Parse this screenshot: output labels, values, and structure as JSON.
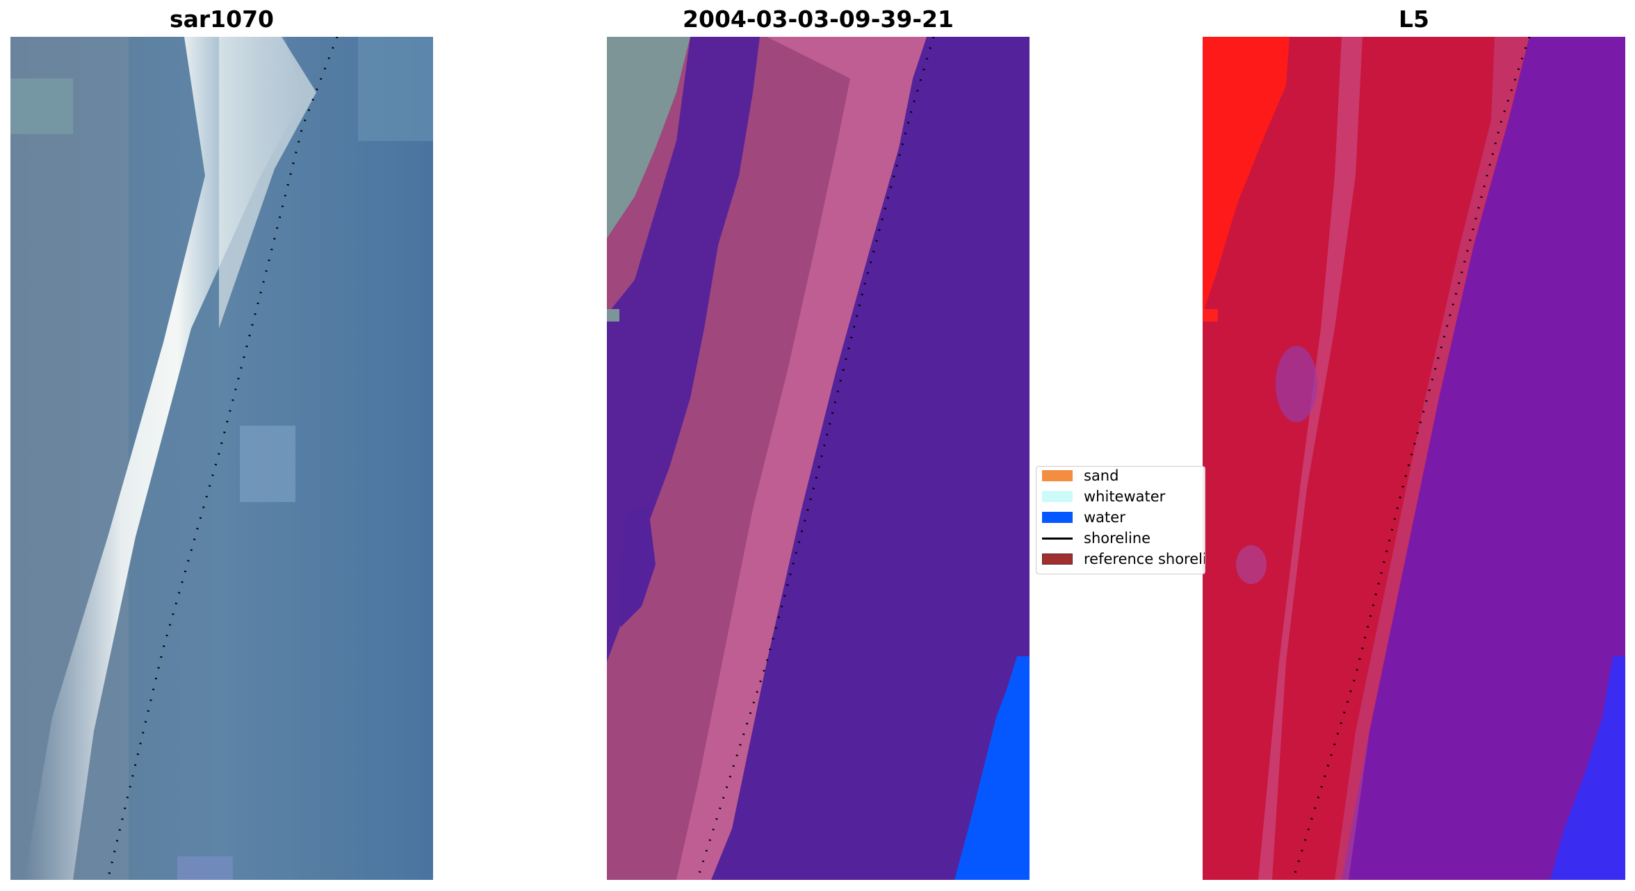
{
  "panels": [
    {
      "title": "sar1070"
    },
    {
      "title": "2004-03-03-09-39-21"
    },
    {
      "title": "L5"
    }
  ],
  "legend": {
    "items": [
      {
        "label": "sand",
        "color": "#f48d40",
        "kind": "patch"
      },
      {
        "label": "whitewater",
        "color": "#ccfbfa",
        "kind": "patch"
      },
      {
        "label": "water",
        "color": "#0558ff",
        "kind": "patch"
      },
      {
        "label": "shoreline",
        "color": "#000000",
        "kind": "line"
      },
      {
        "label": "reference shoreline",
        "color": "#a03030",
        "kind": "patch"
      }
    ]
  }
}
